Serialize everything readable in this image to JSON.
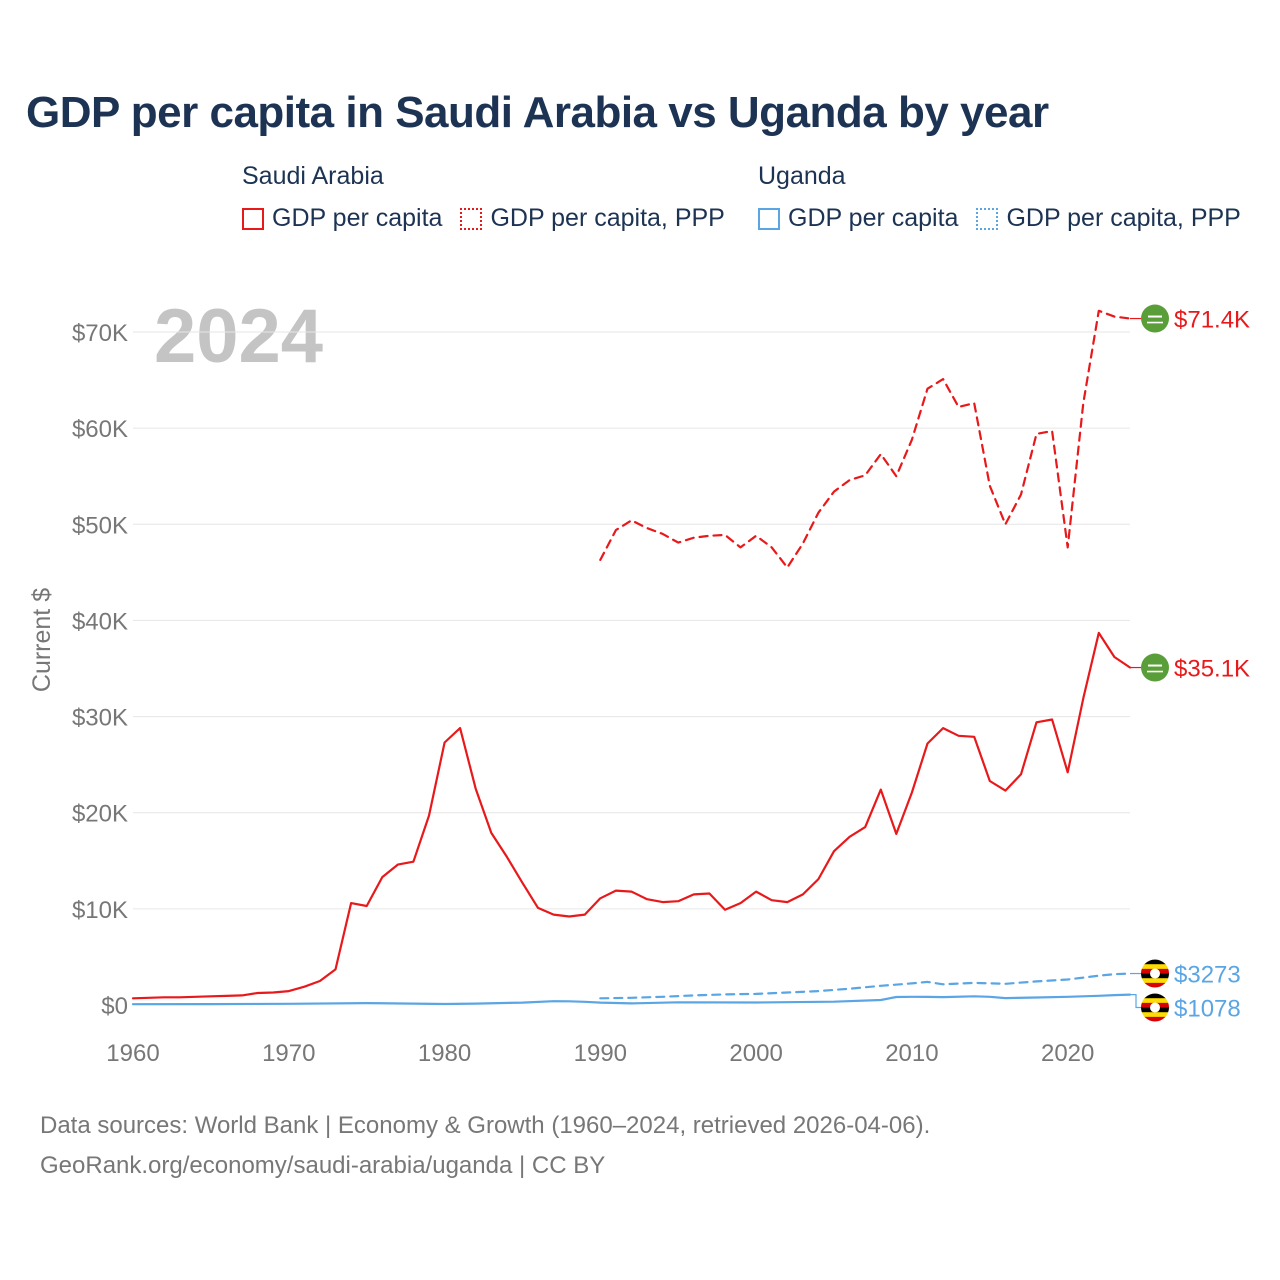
{
  "title": "GDP per capita in Saudi Arabia vs Uganda by year",
  "legend": {
    "groups": [
      {
        "name": "Saudi Arabia",
        "color": "#e8191b",
        "items": [
          {
            "label": "GDP per capita",
            "style": "solid"
          },
          {
            "label": "GDP per capita, PPP",
            "style": "dotted"
          }
        ]
      },
      {
        "name": "Uganda",
        "color": "#5aa5e4",
        "items": [
          {
            "label": "GDP per capita",
            "style": "solid"
          },
          {
            "label": "GDP per capita, PPP",
            "style": "dotted"
          }
        ]
      }
    ]
  },
  "year_label": "2024",
  "source": {
    "line1": "Data sources: World Bank | Economy & Growth (1960–2024, retrieved 2026-04-06).",
    "line2": "GeoRank.org/economy/saudi-arabia/uganda | CC BY"
  },
  "chart_data": {
    "type": "line",
    "title": "GDP per capita in Saudi Arabia vs Uganda by year",
    "xlabel": "",
    "ylabel": "Current $",
    "xlim": [
      1960,
      2024
    ],
    "ylim": [
      0,
      70000
    ],
    "x_ticks": [
      1960,
      1970,
      1980,
      1990,
      2000,
      2010,
      2020
    ],
    "x_tick_labels": [
      "1960",
      "1970",
      "1980",
      "1990",
      "2000",
      "2010",
      "2020"
    ],
    "y_ticks": [
      0,
      10000,
      20000,
      30000,
      40000,
      50000,
      60000,
      70000
    ],
    "y_tick_labels": [
      "$0",
      "$10K",
      "$20K",
      "$30K",
      "$40K",
      "$50K",
      "$60K",
      "$70K"
    ],
    "grid": true,
    "series": [
      {
        "name": "Saudi Arabia GDP per capita",
        "country": "Saudi Arabia",
        "color": "#e8191b",
        "style": "solid",
        "end_label": "$35.1K",
        "x": [
          1960,
          1961,
          1962,
          1963,
          1964,
          1965,
          1966,
          1967,
          1968,
          1969,
          1970,
          1971,
          1972,
          1973,
          1974,
          1975,
          1976,
          1977,
          1978,
          1979,
          1980,
          1981,
          1982,
          1983,
          1984,
          1985,
          1986,
          1987,
          1988,
          1989,
          1990,
          1991,
          1992,
          1993,
          1994,
          1995,
          1996,
          1997,
          1998,
          1999,
          2000,
          2001,
          2002,
          2003,
          2004,
          2005,
          2006,
          2007,
          2008,
          2009,
          2010,
          2011,
          2012,
          2013,
          2014,
          2015,
          2016,
          2017,
          2018,
          2019,
          2020,
          2021,
          2022,
          2023,
          2024
        ],
        "y": [
          700,
          750,
          800,
          800,
          850,
          900,
          950,
          1000,
          1250,
          1300,
          1450,
          1900,
          2500,
          3700,
          10600,
          10300,
          13300,
          14600,
          14900,
          19700,
          27300,
          28800,
          22500,
          17900,
          15400,
          12700,
          10100,
          9400,
          9200,
          9400,
          11100,
          11900,
          11800,
          11000,
          10700,
          10800,
          11500,
          11600,
          9900,
          10600,
          11800,
          10900,
          10700,
          11500,
          13100,
          16000,
          17500,
          18500,
          22400,
          17800,
          22100,
          27200,
          28800,
          28000,
          27900,
          23300,
          22300,
          24000,
          29400,
          29700,
          24200,
          31900,
          38700,
          36200,
          35100
        ]
      },
      {
        "name": "Saudi Arabia GDP per capita, PPP",
        "country": "Saudi Arabia",
        "color": "#e8191b",
        "style": "dashed",
        "end_label": "$71.4K",
        "x": [
          1990,
          1991,
          1992,
          1993,
          1994,
          1995,
          1996,
          1997,
          1998,
          1999,
          2000,
          2001,
          2002,
          2003,
          2004,
          2005,
          2006,
          2007,
          2008,
          2009,
          2010,
          2011,
          2012,
          2013,
          2014,
          2015,
          2016,
          2017,
          2018,
          2019,
          2020,
          2021,
          2022,
          2023,
          2024
        ],
        "y": [
          46300,
          49400,
          50400,
          49600,
          49000,
          48100,
          48600,
          48800,
          48900,
          47600,
          48800,
          47600,
          45500,
          48000,
          51200,
          53400,
          54600,
          55100,
          57300,
          55000,
          58800,
          64100,
          65100,
          62200,
          62600,
          54000,
          50000,
          53100,
          59400,
          59700,
          47600,
          62600,
          72200,
          71600,
          71400
        ]
      },
      {
        "name": "Uganda GDP per capita",
        "country": "Uganda",
        "color": "#5aa5e4",
        "style": "solid",
        "end_label": "$1078",
        "x": [
          1960,
          1965,
          1970,
          1975,
          1980,
          1982,
          1985,
          1987,
          1988,
          1989,
          1990,
          1992,
          1995,
          2000,
          2005,
          2008,
          2009,
          2010,
          2011,
          2012,
          2014,
          2015,
          2016,
          2018,
          2020,
          2022,
          2023,
          2024
        ],
        "y": [
          80,
          90,
          130,
          200,
          100,
          150,
          250,
          400,
          380,
          330,
          250,
          170,
          280,
          260,
          340,
          520,
          830,
          850,
          840,
          820,
          900,
          850,
          720,
          780,
          850,
          960,
          1030,
          1078
        ]
      },
      {
        "name": "Uganda GDP per capita, PPP",
        "country": "Uganda",
        "color": "#5aa5e4",
        "style": "dashed",
        "end_label": "$3273",
        "x": [
          1990,
          1992,
          1994,
          1996,
          1998,
          2000,
          2002,
          2004,
          2006,
          2008,
          2010,
          2011,
          2012,
          2014,
          2016,
          2018,
          2020,
          2022,
          2023,
          2024
        ],
        "y": [
          700,
          750,
          850,
          1000,
          1100,
          1150,
          1300,
          1450,
          1700,
          2000,
          2250,
          2400,
          2150,
          2300,
          2200,
          2450,
          2650,
          3050,
          3200,
          3273
        ]
      }
    ]
  }
}
